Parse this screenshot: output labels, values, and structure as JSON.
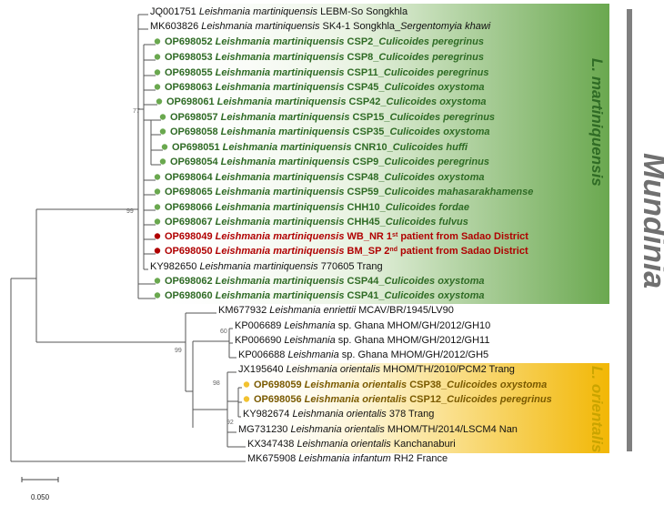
{
  "colors": {
    "green_fill": "#6aa84f",
    "green_dot": "#6aa84f",
    "red_dot": "#b00000",
    "yellow_fill": "#f2b705",
    "yellow_dot": "#f2c230",
    "genus_bar": "#7f7f7f",
    "clade_green_text": "#2f6b25",
    "clade_yellow_text": "#c9a400"
  },
  "genus": "Mundinia",
  "clades": {
    "martiniquensis": "L. martiniquensis",
    "orientalis": "L. orientalis"
  },
  "scale_bar": "0.050",
  "bootstrap": [
    "77",
    "99",
    "60",
    "99",
    "98",
    "92"
  ],
  "leaves": [
    {
      "id": "JQ001751",
      "pre": "JQ001751 ",
      "sp": "Leishmania martiniquensis",
      "post": " LEBM-So Songkhla",
      "sup": "",
      "post2": "",
      "style": "normal",
      "dot": ""
    },
    {
      "id": "MK603826",
      "pre": "MK603826 ",
      "sp": "Leishmania martiniquensis",
      "post": " SK4-1 Songkhla_",
      "sp2": "Sergentomyia khawi",
      "sup": "",
      "post2": "",
      "style": "normal",
      "dot": ""
    },
    {
      "id": "OP698052",
      "pre": "OP698052 ",
      "sp": "Leishmania martiniquensis",
      "post": " CSP2_",
      "sp2": "Culicoides peregrinus",
      "style": "green",
      "dot": "green"
    },
    {
      "id": "OP698053",
      "pre": "OP698053 ",
      "sp": "Leishmania martiniquensis",
      "post": " CSP8_",
      "sp2": "Culicoides peregrinus",
      "style": "green",
      "dot": "green"
    },
    {
      "id": "OP698055",
      "pre": "OP698055 ",
      "sp": "Leishmania martiniquensis",
      "post": " CSP11_",
      "sp2": "Culicoides peregrinus",
      "style": "green",
      "dot": "green"
    },
    {
      "id": "OP698063",
      "pre": "OP698063 ",
      "sp": "Leishmania martiniquensis",
      "post": " CSP45_",
      "sp2": "Culicoides oxystoma",
      "style": "green",
      "dot": "green"
    },
    {
      "id": "OP698061",
      "pre": "OP698061 ",
      "sp": "Leishmania martiniquensis",
      "post": " CSP42_",
      "sp2": "Culicoides oxystoma",
      "style": "green",
      "dot": "green"
    },
    {
      "id": "OP698057",
      "pre": "OP698057 ",
      "sp": "Leishmania martiniquensis",
      "post": " CSP15_",
      "sp2": "Culicoides peregrinus",
      "style": "green",
      "dot": "green"
    },
    {
      "id": "OP698058",
      "pre": "OP698058 ",
      "sp": "Leishmania martiniquensis",
      "post": " CSP35_",
      "sp2": "Culicoides oxystoma",
      "style": "green",
      "dot": "green"
    },
    {
      "id": "OP698051",
      "pre": "OP698051 ",
      "sp": "Leishmania martiniquensis",
      "post": " CNR10_",
      "sp2": "Culicoides huffi",
      "style": "green",
      "dot": "green"
    },
    {
      "id": "OP698054",
      "pre": "OP698054 ",
      "sp": "Leishmania martiniquensis",
      "post": " CSP9_",
      "sp2": "Culicoides peregrinus",
      "style": "green",
      "dot": "green"
    },
    {
      "id": "OP698064",
      "pre": "OP698064 ",
      "sp": "Leishmania martiniquensis",
      "post": " CSP48_",
      "sp2": "Culicoides oxystoma",
      "style": "green",
      "dot": "green"
    },
    {
      "id": "OP698065",
      "pre": "OP698065 ",
      "sp": "Leishmania martiniquensis",
      "post": " CSP59_",
      "sp2": "Culicoides mahasarakhamense",
      "style": "green",
      "dot": "green"
    },
    {
      "id": "OP698066",
      "pre": "OP698066 ",
      "sp": "Leishmania martiniquensis",
      "post": " CHH10_",
      "sp2": "Culicoides fordae",
      "style": "green",
      "dot": "green"
    },
    {
      "id": "OP698067",
      "pre": "OP698067 ",
      "sp": "Leishmania martiniquensis",
      "post": " CHH45_",
      "sp2": "Culicoides fulvus",
      "style": "green",
      "dot": "green"
    },
    {
      "id": "OP698049",
      "pre": "OP698049 ",
      "sp": "Leishmania martiniquensis",
      "post": " WB_NR 1",
      "sup": "st",
      "post2": " patient from Sadao District",
      "style": "red",
      "dot": "red"
    },
    {
      "id": "OP698050",
      "pre": "OP698050 ",
      "sp": "Leishmania martiniquensis",
      "post": " BM_SP 2",
      "sup": "nd",
      "post2": " patient from Sadao District",
      "style": "red",
      "dot": "red"
    },
    {
      "id": "KY982650",
      "pre": "KY982650 ",
      "sp": "Leishmania martiniquensis",
      "post": " 770605 Trang",
      "style": "normal",
      "dot": ""
    },
    {
      "id": "OP698062",
      "pre": "OP698062 ",
      "sp": "Leishmania martiniquensis",
      "post": " CSP44_",
      "sp2": "Culicoides oxystoma",
      "style": "green",
      "dot": "green"
    },
    {
      "id": "OP698060",
      "pre": "OP698060 ",
      "sp": "Leishmania martiniquensis",
      "post": " CSP41_",
      "sp2": "Culicoides oxystoma",
      "style": "green",
      "dot": "green"
    },
    {
      "id": "KM677932",
      "pre": "KM677932 ",
      "sp": "Leishmania enriettii",
      "post": " MCAV/BR/1945/LV90",
      "style": "normal",
      "dot": ""
    },
    {
      "id": "KP006689",
      "pre": "KP006689 ",
      "sp": "Leishmania",
      "post": " sp. Ghana MHOM/GH/2012/GH10",
      "style": "normal",
      "dot": ""
    },
    {
      "id": "KP006690",
      "pre": "KP006690 ",
      "sp": "Leishmania",
      "post": " sp. Ghana MHOM/GH/2012/GH11",
      "style": "normal",
      "dot": ""
    },
    {
      "id": "KP006688",
      "pre": "KP006688 ",
      "sp": "Leishmania",
      "post": " sp. Ghana MHOM/GH/2012/GH5",
      "style": "normal",
      "dot": ""
    },
    {
      "id": "JX195640",
      "pre": "JX195640 ",
      "sp": "Leishmania orientalis",
      "post": " MHOM/TH/2010/PCM2 Trang",
      "style": "normal",
      "dot": ""
    },
    {
      "id": "OP698059",
      "pre": "OP698059 ",
      "sp": "Leishmania orientalis",
      "post": " CSP38_",
      "sp2": "Culicoides oxystoma",
      "style": "yellow",
      "dot": "yellow"
    },
    {
      "id": "OP698056",
      "pre": "OP698056 ",
      "sp": "Leishmania orientalis",
      "post": " CSP12_",
      "sp2": "Culicoides peregrinus",
      "style": "yellow",
      "dot": "yellow"
    },
    {
      "id": "KY982674",
      "pre": "KY982674 ",
      "sp": "Leishmania orientalis",
      "post": " 378 Trang",
      "style": "normal",
      "dot": ""
    },
    {
      "id": "MG731230",
      "pre": "MG731230 ",
      "sp": "Leishmania orientalis",
      "post": " MHOM/TH/2014/LSCM4 Nan",
      "style": "normal",
      "dot": ""
    },
    {
      "id": "KX347438",
      "pre": "KX347438 ",
      "sp": "Leishmania orientalis",
      "post": " Kanchanaburi",
      "style": "normal",
      "dot": ""
    },
    {
      "id": "MK675908",
      "pre": "MK675908 ",
      "sp": "Leishmania infantum",
      "post": " RH2 France",
      "style": "normal",
      "dot": ""
    }
  ]
}
